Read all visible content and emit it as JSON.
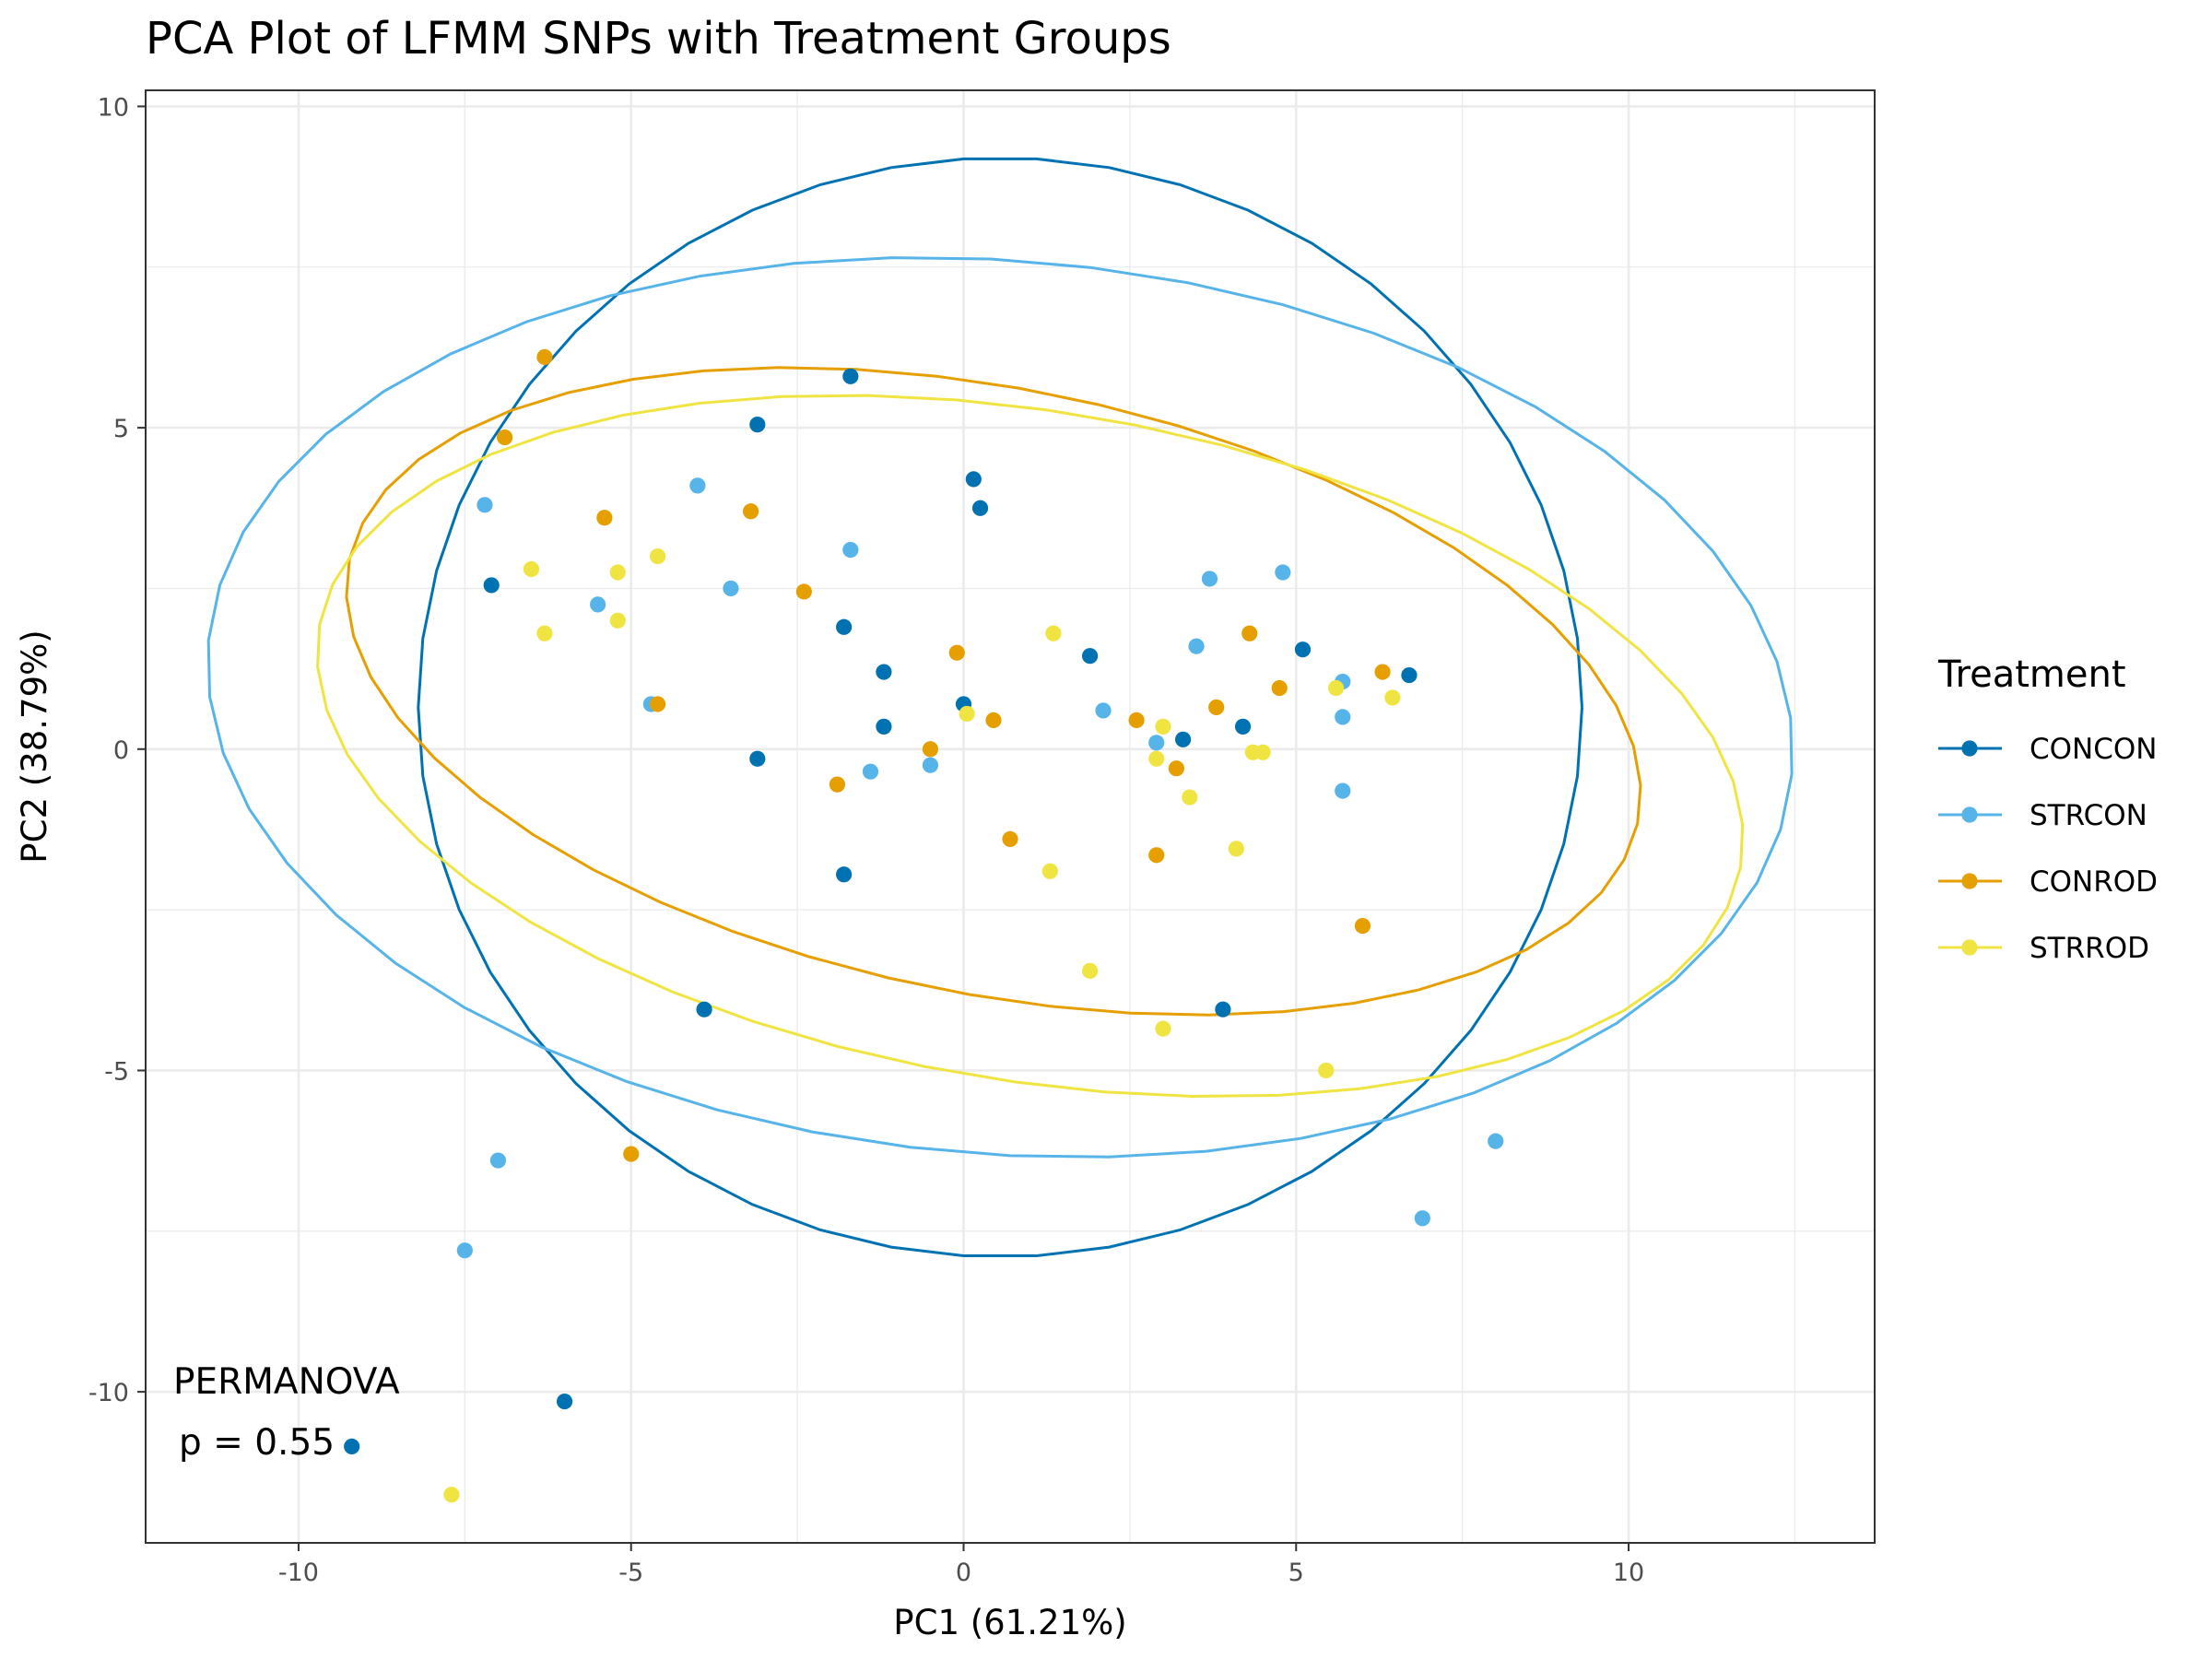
{
  "chart_data": {
    "type": "scatter",
    "title": "PCA Plot of LFMM SNPs with Treatment Groups",
    "xlabel": "PC1 (61.21%)",
    "ylabel": "PC2 (38.79%)",
    "xlim": [
      -12.3,
      13.7
    ],
    "ylim": [
      -12.35,
      10.25
    ],
    "xticks": [
      -10,
      -5,
      0,
      5,
      10
    ],
    "yticks": [
      -10,
      -5,
      0,
      5,
      10
    ],
    "tick_labels_x": [
      "-10",
      "-5",
      "0",
      "5",
      "10"
    ],
    "tick_labels_y": [
      "-10",
      "-5",
      "0",
      "5",
      "10"
    ],
    "grid": true,
    "legend": {
      "title": "Treatment",
      "position": "right"
    },
    "annotation": [
      "PERMANOVA",
      "p = 0.55"
    ],
    "series": [
      {
        "name": "CONCON",
        "color": "#0072b2",
        "points": [
          [
            -1.7,
            5.8
          ],
          [
            -3.1,
            5.05
          ],
          [
            0.15,
            4.2
          ],
          [
            0.25,
            3.75
          ],
          [
            -7.1,
            2.55
          ],
          [
            -1.8,
            1.9
          ],
          [
            -1.2,
            1.2
          ],
          [
            -1.2,
            0.35
          ],
          [
            0.0,
            0.7
          ],
          [
            1.9,
            1.45
          ],
          [
            5.1,
            1.55
          ],
          [
            6.7,
            1.15
          ],
          [
            4.2,
            0.35
          ],
          [
            3.3,
            0.15
          ],
          [
            -3.1,
            -0.15
          ],
          [
            -1.8,
            -1.95
          ],
          [
            -3.9,
            -4.05
          ],
          [
            3.9,
            -4.05
          ],
          [
            -6.0,
            -10.15
          ],
          [
            -9.2,
            -10.85
          ]
        ],
        "ellipse": {
          "center": [
            0.55,
            0.65
          ],
          "semi_axes": [
            8.75,
            8.55
          ],
          "angle_deg": 0
        }
      },
      {
        "name": "STRCON",
        "color": "#56b4e9",
        "points": [
          [
            -7.2,
            3.8
          ],
          [
            -4.0,
            4.1
          ],
          [
            -1.7,
            3.1
          ],
          [
            -3.5,
            2.5
          ],
          [
            -5.5,
            2.25
          ],
          [
            -4.7,
            0.7
          ],
          [
            3.7,
            2.65
          ],
          [
            4.8,
            2.75
          ],
          [
            3.5,
            1.6
          ],
          [
            5.7,
            1.05
          ],
          [
            5.7,
            0.5
          ],
          [
            2.1,
            0.6
          ],
          [
            2.9,
            0.1
          ],
          [
            -1.4,
            -0.35
          ],
          [
            -0.5,
            -0.25
          ],
          [
            5.7,
            -0.65
          ],
          [
            -7.0,
            -6.4
          ],
          [
            -7.5,
            -7.8
          ],
          [
            8.0,
            -6.1
          ],
          [
            6.9,
            -7.3
          ]
        ],
        "ellipse": {
          "center": [
            0.55,
            0.65
          ],
          "semi_axes": [
            11.95,
            6.95
          ],
          "angle_deg": -5
        }
      },
      {
        "name": "CONROD",
        "color": "#e69f00",
        "points": [
          [
            -6.3,
            6.1
          ],
          [
            -6.9,
            4.85
          ],
          [
            -5.4,
            3.6
          ],
          [
            -3.2,
            3.7
          ],
          [
            -2.4,
            2.45
          ],
          [
            -4.6,
            0.7
          ],
          [
            -0.1,
            1.5
          ],
          [
            0.45,
            0.45
          ],
          [
            -0.5,
            0.0
          ],
          [
            -1.9,
            -0.55
          ],
          [
            0.7,
            -1.4
          ],
          [
            2.6,
            0.45
          ],
          [
            3.8,
            0.65
          ],
          [
            4.3,
            1.8
          ],
          [
            4.75,
            0.95
          ],
          [
            6.3,
            1.2
          ],
          [
            3.2,
            -0.3
          ],
          [
            2.9,
            -1.65
          ],
          [
            6.0,
            -2.75
          ],
          [
            -5.0,
            -6.3
          ]
        ],
        "ellipse": {
          "center": [
            0.45,
            0.9
          ],
          "semi_axes": [
            9.9,
            4.7
          ],
          "angle_deg": -12
        }
      },
      {
        "name": "STRROD",
        "color": "#f0e442",
        "points": [
          [
            -6.5,
            2.8
          ],
          [
            -5.2,
            2.75
          ],
          [
            -4.6,
            3.0
          ],
          [
            -5.2,
            2.0
          ],
          [
            -6.3,
            1.8
          ],
          [
            1.35,
            1.8
          ],
          [
            0.05,
            0.55
          ],
          [
            5.6,
            0.95
          ],
          [
            6.45,
            0.8
          ],
          [
            3.0,
            0.35
          ],
          [
            2.9,
            -0.15
          ],
          [
            4.35,
            -0.05
          ],
          [
            4.5,
            -0.05
          ],
          [
            3.4,
            -0.75
          ],
          [
            4.1,
            -1.55
          ],
          [
            1.3,
            -1.9
          ],
          [
            1.9,
            -3.45
          ],
          [
            3.0,
            -4.35
          ],
          [
            5.45,
            -5.0
          ],
          [
            -7.7,
            -11.6
          ]
        ],
        "ellipse": {
          "center": [
            1.0,
            0.05
          ],
          "semi_axes": [
            10.85,
            5.2
          ],
          "angle_deg": -10
        }
      }
    ]
  }
}
